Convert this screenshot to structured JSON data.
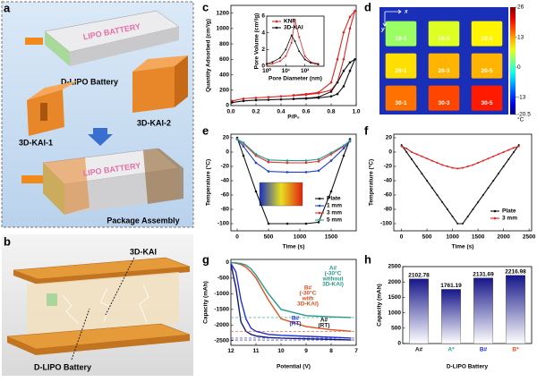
{
  "panel_labels": [
    "a",
    "b",
    "c",
    "d",
    "e",
    "f",
    "g",
    "h"
  ],
  "illustration_a": {
    "battery_label": "LIPO BATTERY",
    "battery": "D-LIPO Battery",
    "kai1": "3D-KAI-1",
    "kai2": "3D-KAI-2",
    "assembled_label": "LIPO BATTERY",
    "assembly": "Package Assembly"
  },
  "illustration_b": {
    "kai": "3D-KAI",
    "battery": "D-LIPO Battery"
  },
  "chart_data": [
    {
      "type": "line",
      "x_label": "P/P₀",
      "y_label": "Quantity Adsorbed (cm³/g)",
      "xlim": [
        0,
        1
      ],
      "xticks": [
        {
          "value": 0,
          "label": "0.0"
        },
        0.2,
        0.4,
        0.6,
        0.8,
        {
          "value": 1,
          "label": "1.0"
        }
      ],
      "ylim": [
        0,
        1300
      ],
      "yticks": [
        0,
        200,
        400,
        600,
        800,
        1000,
        1200
      ],
      "markers": true,
      "x": [
        0.01,
        0.1,
        0.2,
        0.3,
        0.4,
        0.5,
        0.6,
        0.7,
        0.8,
        0.85,
        0.9,
        0.95,
        0.99,
        0.95,
        0.9,
        0.85,
        0.8,
        0.7,
        0.6,
        0.5
      ],
      "series": [
        {
          "color": "#e32222",
          "values": [
            60,
            90,
            100,
            110,
            120,
            130,
            140,
            160,
            200,
            300,
            600,
            1000,
            1230,
            1150,
            950,
            600,
            300,
            170,
            150,
            135
          ]
        },
        {
          "color": "#111111",
          "values": [
            40,
            60,
            70,
            75,
            80,
            85,
            90,
            100,
            120,
            150,
            250,
            450,
            600,
            560,
            450,
            300,
            180,
            110,
            95,
            88
          ]
        }
      ],
      "inset": {
        "type": "line",
        "x_label": "Pore Diameter (nm)",
        "y_label": "Pore Volume (cm³/g)",
        "xlog": true,
        "xlim": [
          1,
          1000
        ],
        "xticks": [
          {
            "value": 1,
            "label": "10⁰"
          },
          {
            "value": 10,
            "label": "10¹"
          },
          {
            "value": 100,
            "label": "10²"
          }
        ],
        "ylim": [
          0,
          6
        ],
        "yticks": [
          0,
          2,
          4,
          6
        ],
        "markers": true,
        "x": [
          1,
          2,
          5,
          10,
          20,
          30,
          50,
          100,
          200,
          500
        ],
        "series": [
          {
            "name": "KNF",
            "color": "#e32222",
            "values": [
              0.2,
              0.3,
              0.6,
              1.2,
              2.8,
              5.5,
              3.5,
              1.2,
              0.5,
              0.3
            ]
          },
          {
            "name": "3D-KAI",
            "color": "#111111",
            "values": [
              0.3,
              0.5,
              1.0,
              2.0,
              3.7,
              3.0,
              1.8,
              0.8,
              0.4,
              0.2
            ]
          }
        ]
      }
    },
    {
      "type": "heatmap",
      "x_label": "x",
      "y_label": "y",
      "labels": [
        [
          "10-1",
          "10-3",
          "10-5"
        ],
        [
          "20-1",
          "20-3",
          "20-5"
        ],
        [
          "30-1",
          "30-3",
          "30-5"
        ]
      ],
      "values": [
        [
          4,
          7,
          9
        ],
        [
          10,
          12,
          12
        ],
        [
          15,
          17,
          19
        ]
      ],
      "zlim": [
        -20.5,
        26
      ],
      "zticks": [
        26,
        13,
        0,
        -13,
        -20.5
      ],
      "unit": "°C"
    },
    {
      "type": "line",
      "x_label": "Time (s)",
      "y_label": "Temperature (°C)",
      "xlim": [
        -100,
        1900
      ],
      "xticks": [
        0,
        500,
        1000,
        1500
      ],
      "ylim": [
        -110,
        25
      ],
      "yticks": [
        20,
        0,
        -20,
        -40,
        -60,
        -80,
        -100
      ],
      "markers": true,
      "x": [
        0,
        100,
        300,
        500,
        800,
        1100,
        1300,
        1500,
        1700,
        1800
      ],
      "series": [
        {
          "name": "Plate",
          "color": "#111111",
          "values": [
            20,
            -5,
            -55,
            -100,
            -100,
            -100,
            -98,
            -55,
            -5,
            18
          ]
        },
        {
          "name": "1 mm",
          "color": "#2040d0",
          "values": [
            18,
            8,
            -15,
            -27,
            -28,
            -28,
            -26,
            -12,
            5,
            15
          ]
        },
        {
          "name": "3 mm",
          "color": "#e03030",
          "values": [
            18,
            12,
            -5,
            -14,
            -15,
            -15,
            -13,
            -3,
            8,
            16
          ]
        },
        {
          "name": "5 mm",
          "color": "#2a9a8a",
          "values": [
            18,
            13,
            -3,
            -11,
            -12,
            -12,
            -10,
            -1,
            9,
            16
          ]
        }
      ]
    },
    {
      "type": "line",
      "x_label": "Time (s)",
      "y_label": "Temperature (°C)",
      "xlim": [
        -150,
        2550
      ],
      "xticks": [
        0,
        500,
        1000,
        1500,
        2000,
        2500
      ],
      "ylim": [
        -110,
        25
      ],
      "yticks": [
        20,
        0,
        -20,
        -40,
        -60,
        -80,
        -100
      ],
      "markers": true,
      "x": [
        0,
        100,
        200,
        300,
        400,
        500,
        600,
        700,
        800,
        900,
        1000,
        1100,
        1200,
        1300,
        1400,
        1500,
        1600,
        1700,
        1800,
        1900,
        2000,
        2100,
        2200,
        2300
      ],
      "series": [
        {
          "name": "Plate",
          "color": "#111111",
          "values": [
            10,
            0,
            -10,
            -20,
            -30,
            -40,
            -50,
            -60,
            -70,
            -80,
            -90,
            -100,
            -100,
            -90,
            -80,
            -70,
            -60,
            -50,
            -40,
            -30,
            -20,
            -10,
            0,
            10
          ]
        },
        {
          "name": "3 mm",
          "color": "#e02020",
          "values": [
            8,
            5,
            0,
            -3,
            -6,
            -9,
            -12,
            -15,
            -18,
            -20,
            -22,
            -23,
            -22,
            -20,
            -18,
            -15,
            -12,
            -9,
            -6,
            -3,
            0,
            3,
            6,
            8
          ]
        }
      ]
    },
    {
      "type": "line",
      "x_label": "Potential (V)",
      "y_label": "Capacity (mAh)",
      "xlim": [
        12,
        7
      ],
      "xticks": [
        12,
        11,
        10,
        9,
        8,
        7
      ],
      "ylim": [
        -2650,
        100
      ],
      "yticks": [
        0,
        -500,
        -1000,
        -1500,
        -2000,
        -2500
      ],
      "x": [
        12,
        11.8,
        11.6,
        11.4,
        11.2,
        11,
        10.5,
        10,
        9,
        8,
        7.2
      ],
      "series": [
        {
          "color": "#15157a",
          "values": [
            -50,
            -800,
            -1900,
            -2200,
            -2300,
            -2350,
            -2400,
            -2420,
            -2440,
            -2460,
            -2480
          ]
        },
        {
          "color": "#2030d0",
          "values": [
            -30,
            -300,
            -1200,
            -1800,
            -2100,
            -2200,
            -2300,
            -2330,
            -2360,
            -2390,
            -2420
          ]
        },
        {
          "color": "#e05020",
          "values": [
            0,
            -20,
            -60,
            -150,
            -300,
            -500,
            -1200,
            -1800,
            -2050,
            -2150,
            -2200
          ]
        },
        {
          "color": "#2a9a8a",
          "values": [
            0,
            -10,
            -30,
            -80,
            -200,
            -400,
            -1000,
            -1500,
            -1700,
            -1740,
            -1760
          ]
        }
      ],
      "annotations": [
        {
          "lines": [
            "A#",
            "(-30°C",
            "without",
            "3D-KAI)"
          ],
          "color": "#2a9a8a"
        },
        {
          "lines": [
            "B#",
            "(-30°C",
            "with",
            "3D-KAI)"
          ],
          "color": "#e05020"
        },
        {
          "lines": [
            "B#",
            "(RT)"
          ],
          "color": "#2030d0"
        },
        {
          "lines": [
            "A#",
            "(RT)"
          ],
          "color": "#111111"
        }
      ]
    },
    {
      "type": "bar",
      "x_label": "D-LIPO Battery",
      "y_label": "Capacity (mAh)",
      "categories": [
        "A#",
        "A*",
        "B#",
        "B*"
      ],
      "category_colors": [
        "#111111",
        "#2a9a8a",
        "#2030d0",
        "#e05020"
      ],
      "values": [
        2102.78,
        1761.19,
        2131.69,
        2216.98
      ],
      "color": "#16168a",
      "ylim": [
        0,
        2500
      ],
      "yticks": [
        0,
        500,
        1000,
        1500,
        2000,
        2500
      ]
    }
  ]
}
